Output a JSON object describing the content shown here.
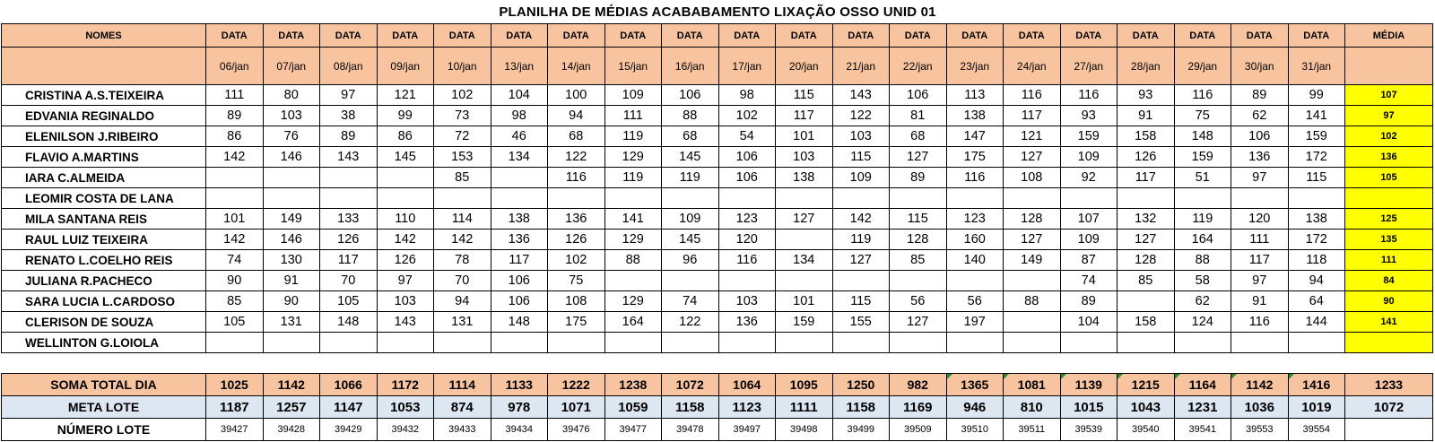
{
  "title": "PLANILHA DE MÉDIAS ACABABAMENTO LIXAÇÃO OSSO UNID 01",
  "header": {
    "names_label": "NOMES",
    "data_label": "DATA",
    "media_label": "MÉDIA",
    "dates": [
      "06/jan",
      "07/jan",
      "08/jan",
      "09/jan",
      "10/jan",
      "13/jan",
      "14/jan",
      "15/jan",
      "16/jan",
      "17/jan",
      "20/jan",
      "21/jan",
      "22/jan",
      "23/jan",
      "24/jan",
      "27/jan",
      "28/jan",
      "29/jan",
      "30/jan",
      "31/jan"
    ]
  },
  "rows": [
    {
      "name": "CRISTINA A.S.TEIXEIRA",
      "values": [
        "111",
        "80",
        "97",
        "121",
        "102",
        "104",
        "100",
        "109",
        "106",
        "98",
        "115",
        "143",
        "106",
        "113",
        "116",
        "116",
        "93",
        "116",
        "89",
        "99"
      ],
      "media": "107"
    },
    {
      "name": "EDVANIA REGINALDO",
      "values": [
        "89",
        "103",
        "38",
        "99",
        "73",
        "98",
        "94",
        "111",
        "88",
        "102",
        "117",
        "122",
        "81",
        "138",
        "117",
        "93",
        "91",
        "75",
        "62",
        "141"
      ],
      "media": "97"
    },
    {
      "name": "ELENILSON J.RIBEIRO",
      "values": [
        "86",
        "76",
        "89",
        "86",
        "72",
        "46",
        "68",
        "119",
        "68",
        "54",
        "101",
        "103",
        "68",
        "147",
        "121",
        "159",
        "158",
        "148",
        "106",
        "159"
      ],
      "media": "102"
    },
    {
      "name": "FLAVIO A.MARTINS",
      "values": [
        "142",
        "146",
        "143",
        "145",
        "153",
        "134",
        "122",
        "129",
        "145",
        "106",
        "103",
        "115",
        "127",
        "175",
        "127",
        "109",
        "126",
        "159",
        "136",
        "172"
      ],
      "media": "136"
    },
    {
      "name": "IARA C.ALMEIDA",
      "values": [
        "",
        "",
        "",
        "",
        "85",
        "",
        "116",
        "119",
        "119",
        "106",
        "138",
        "109",
        "89",
        "116",
        "108",
        "92",
        "117",
        "51",
        "97",
        "115"
      ],
      "media": "105"
    },
    {
      "name": "LEOMIR COSTA DE LANA",
      "values": [
        "",
        "",
        "",
        "",
        "",
        "",
        "",
        "",
        "",
        "",
        "",
        "",
        "",
        "",
        "",
        "",
        "",
        "",
        "",
        ""
      ],
      "media": ""
    },
    {
      "name": "MILA SANTANA REIS",
      "values": [
        "101",
        "149",
        "133",
        "110",
        "114",
        "138",
        "136",
        "141",
        "109",
        "123",
        "127",
        "142",
        "115",
        "123",
        "128",
        "107",
        "132",
        "119",
        "120",
        "138"
      ],
      "media": "125"
    },
    {
      "name": "RAUL LUIZ TEIXEIRA",
      "values": [
        "142",
        "146",
        "126",
        "142",
        "142",
        "136",
        "126",
        "129",
        "145",
        "120",
        "",
        "119",
        "128",
        "160",
        "127",
        "109",
        "127",
        "164",
        "111",
        "172"
      ],
      "media": "135"
    },
    {
      "name": "RENATO L.COELHO REIS",
      "values": [
        "74",
        "130",
        "117",
        "126",
        "78",
        "117",
        "102",
        "88",
        "96",
        "116",
        "134",
        "127",
        "85",
        "140",
        "149",
        "87",
        "128",
        "88",
        "117",
        "118"
      ],
      "media": "111"
    },
    {
      "name": "JULIANA R.PACHECO",
      "values": [
        "90",
        "91",
        "70",
        "97",
        "70",
        "106",
        "75",
        "",
        "",
        "",
        "",
        "",
        "",
        "",
        "",
        "74",
        "85",
        "58",
        "97",
        "94"
      ],
      "media": "84"
    },
    {
      "name": "SARA LUCIA L.CARDOSO",
      "values": [
        "85",
        "90",
        "105",
        "103",
        "94",
        "106",
        "108",
        "129",
        "74",
        "103",
        "101",
        "115",
        "56",
        "56",
        "88",
        "89",
        "",
        "62",
        "91",
        "64"
      ],
      "media": "90"
    },
    {
      "name": "CLERISON DE SOUZA",
      "values": [
        "105",
        "131",
        "148",
        "143",
        "131",
        "148",
        "175",
        "164",
        "122",
        "136",
        "159",
        "155",
        "127",
        "197",
        "",
        "104",
        "158",
        "124",
        "116",
        "144"
      ],
      "media": "141"
    },
    {
      "name": "WELLINTON G.LOIOLA",
      "values": [
        "",
        "",
        "",
        "",
        "",
        "",
        "",
        "",
        "",
        "",
        "",
        "",
        "",
        "",
        "",
        "",
        "",
        "",
        "",
        ""
      ],
      "media": ""
    }
  ],
  "soma": {
    "label": "SOMA TOTAL DIA",
    "values": [
      "1025",
      "1142",
      "1066",
      "1172",
      "1114",
      "1133",
      "1222",
      "1238",
      "1072",
      "1064",
      "1095",
      "1250",
      "982",
      "1365",
      "1081",
      "1139",
      "1215",
      "1164",
      "1142",
      "1416"
    ],
    "media": "1233"
  },
  "meta": {
    "label": "META LOTE",
    "values": [
      "1187",
      "1257",
      "1147",
      "1053",
      "874",
      "978",
      "1071",
      "1059",
      "1158",
      "1123",
      "1111",
      "1158",
      "1169",
      "946",
      "810",
      "1015",
      "1043",
      "1231",
      "1036",
      "1019"
    ],
    "media": "1072"
  },
  "lote": {
    "label": "NÚMERO LOTE",
    "values": [
      "39427",
      "39428",
      "39429",
      "39432",
      "39433",
      "39434",
      "39476",
      "39477",
      "39478",
      "39497",
      "39498",
      "39499",
      "39509",
      "39510",
      "39511",
      "39539",
      "39540",
      "39541",
      "39553",
      "39554"
    ],
    "media": ""
  },
  "colors": {
    "header_bg": "#f8c4a0",
    "media_bg": "#ffff00",
    "meta_bg": "#dde7f2",
    "flag": "#2e8b2e"
  }
}
